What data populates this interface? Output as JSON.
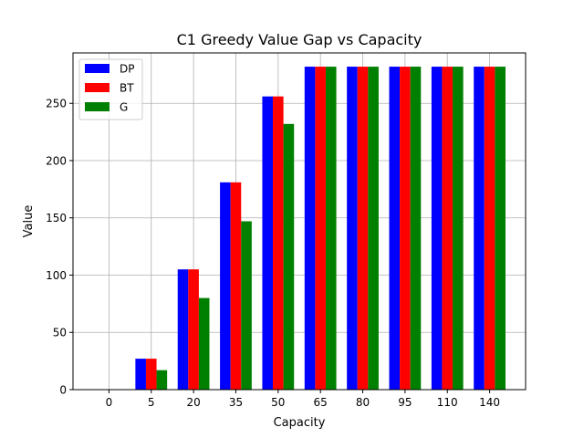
{
  "chart_data": {
    "type": "bar",
    "title": "C1 Greedy Value Gap vs Capacity",
    "xlabel": "Capacity",
    "ylabel": "Value",
    "categories": [
      "0",
      "5",
      "20",
      "35",
      "50",
      "65",
      "80",
      "95",
      "110",
      "140"
    ],
    "series": [
      {
        "name": "DP",
        "color": "#0000ff",
        "values": [
          0,
          27,
          105,
          181,
          256,
          282,
          282,
          282,
          282,
          282
        ]
      },
      {
        "name": "BT",
        "color": "#ff0000",
        "values": [
          0,
          27,
          105,
          181,
          256,
          282,
          282,
          282,
          282,
          282
        ]
      },
      {
        "name": "G",
        "color": "#008000",
        "values": [
          0,
          17,
          80,
          147,
          232,
          282,
          282,
          282,
          282,
          282
        ]
      }
    ],
    "ylim": [
      0,
      294
    ],
    "yticks": [
      0,
      50,
      100,
      150,
      200,
      250
    ],
    "grid": true,
    "legend": "top-left"
  }
}
